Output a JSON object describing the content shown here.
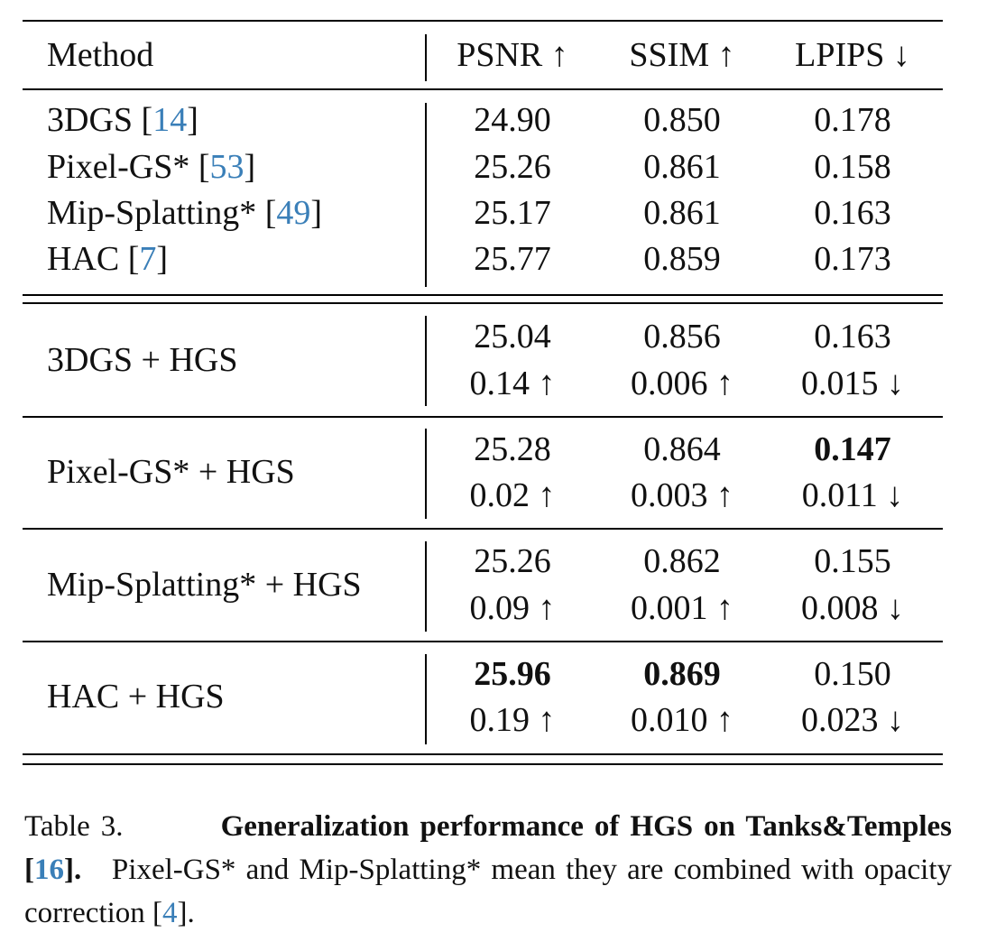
{
  "table": {
    "header": {
      "method": "Method",
      "psnr": "PSNR ↑",
      "ssim": "SSIM ↑",
      "lpips": "LPIPS ↓"
    },
    "baselines": [
      {
        "name": "3DGS",
        "cite": "14",
        "psnr": "24.90",
        "ssim": "0.850",
        "lpips": "0.178"
      },
      {
        "name": "Pixel-GS*",
        "cite": "53",
        "psnr": "25.26",
        "ssim": "0.861",
        "lpips": "0.158"
      },
      {
        "name": "Mip-Splatting*",
        "cite": "49",
        "psnr": "25.17",
        "ssim": "0.861",
        "lpips": "0.163"
      },
      {
        "name": "HAC",
        "cite": "7",
        "psnr": "25.77",
        "ssim": "0.859",
        "lpips": "0.173"
      }
    ],
    "hgs": [
      {
        "name": "3DGS + HGS",
        "psnr": "25.04",
        "ssim": "0.856",
        "lpips": "0.163",
        "d_psnr": "0.14 ↑",
        "d_ssim": "0.006 ↑",
        "d_lpips": "0.015 ↓"
      },
      {
        "name": "Pixel-GS* + HGS",
        "psnr": "25.28",
        "ssim": "0.864",
        "lpips": "0.147",
        "d_psnr": "0.02 ↑",
        "d_ssim": "0.003 ↑",
        "d_lpips": "0.011 ↓"
      },
      {
        "name": "Mip-Splatting* + HGS",
        "psnr": "25.26",
        "ssim": "0.862",
        "lpips": "0.155",
        "d_psnr": "0.09 ↑",
        "d_ssim": "0.001 ↑",
        "d_lpips": "0.008 ↓"
      },
      {
        "name": "HAC + HGS",
        "psnr": "25.96",
        "ssim": "0.869",
        "lpips": "0.150",
        "d_psnr": "0.19 ↑",
        "d_ssim": "0.010 ↑",
        "d_lpips": "0.023 ↓"
      }
    ]
  },
  "caption": {
    "label": "Table 3.",
    "bold_part1": "Generalization performance of HGS on Tanks&Temples [",
    "bold_cite": "16",
    "bold_part2": "].",
    "text1": "Pixel-GS* and Mip-Splatting* mean they are combined with opacity correction [",
    "cite": "4",
    "text2": "]."
  }
}
